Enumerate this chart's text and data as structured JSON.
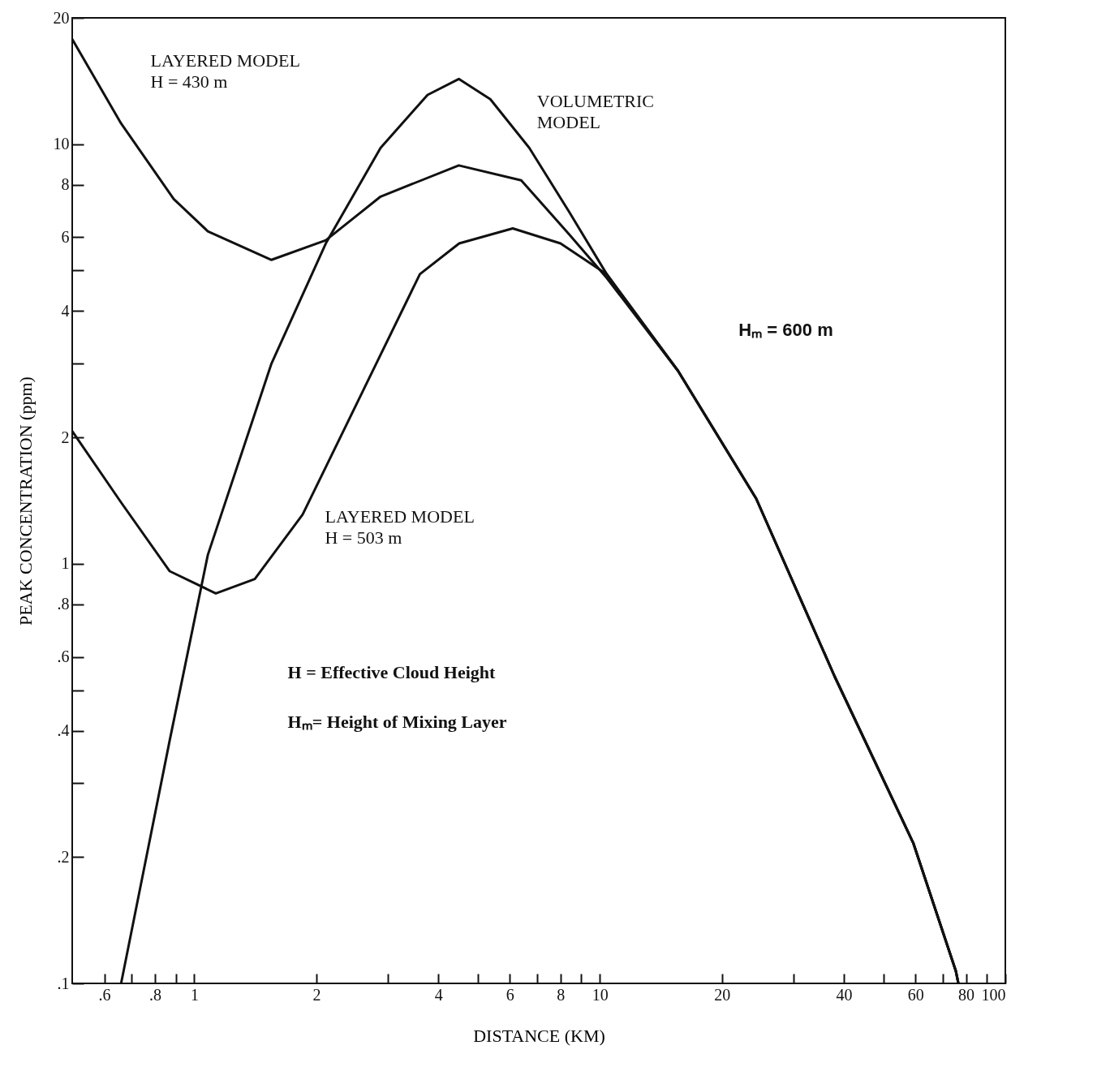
{
  "chart_data": {
    "type": "line",
    "xlabel": "DISTANCE (KM)",
    "ylabel": "PEAK CONCENTRATION (ppm)",
    "log": "xy",
    "grid": false,
    "marker": "none",
    "line_style": "solid",
    "xlim": [
      0.5,
      100
    ],
    "ylim": [
      0.1,
      20
    ],
    "xticks": [
      {
        "value": 0.6,
        "label": ".6"
      },
      {
        "value": 0.7,
        "label": null
      },
      {
        "value": 0.8,
        "label": ".8"
      },
      {
        "value": 0.9,
        "label": null
      },
      1,
      2,
      {
        "value": 3,
        "label": null
      },
      4,
      {
        "value": 5,
        "label": null
      },
      6,
      {
        "value": 7,
        "label": null
      },
      8,
      {
        "value": 9,
        "label": null
      },
      10,
      20,
      {
        "value": 30,
        "label": null
      },
      40,
      {
        "value": 50,
        "label": null
      },
      60,
      {
        "value": 70,
        "label": null
      },
      80,
      {
        "value": 90,
        "label": null
      },
      100
    ],
    "yticks": [
      {
        "value": 0.1,
        "label": ".1"
      },
      {
        "value": 0.2,
        "label": ".2"
      },
      {
        "value": 0.3,
        "label": null
      },
      {
        "value": 0.4,
        "label": ".4"
      },
      {
        "value": 0.5,
        "label": null
      },
      {
        "value": 0.6,
        "label": ".6"
      },
      {
        "value": 0.8,
        "label": ".8"
      },
      1,
      2,
      {
        "value": 3,
        "label": null
      },
      4,
      {
        "value": 5,
        "label": null
      },
      6,
      8,
      10,
      20
    ],
    "series": [
      {
        "name": "LAYERED MODEL\nH = 430 m",
        "color": "#111111",
        "x": [
          0.5,
          0.66,
          0.89,
          1.08,
          1.55,
          2.11,
          2.88,
          4.49,
          6.4,
          8.4,
          10.4,
          15.6,
          24.3,
          37.9,
          59.3,
          75.5,
          76.6
        ],
        "values": [
          17.8,
          11.2,
          7.4,
          6.2,
          5.3,
          5.9,
          7.5,
          8.9,
          8.2,
          6.1,
          4.8,
          2.88,
          1.43,
          0.54,
          0.216,
          0.107,
          0.1
        ]
      },
      {
        "name": "VOLUMETRIC\nMODEL",
        "color": "#111111",
        "x": [
          0.66,
          0.87,
          1.08,
          1.55,
          2.11,
          2.88,
          3.76,
          4.49,
          5.37,
          6.7,
          8.4,
          10.4,
          15.6,
          24.3,
          37.9,
          59.3,
          75.5,
          76.6
        ],
        "values": [
          0.1,
          0.38,
          1.05,
          3.0,
          5.8,
          9.8,
          13.1,
          14.3,
          12.8,
          9.8,
          6.9,
          4.9,
          2.88,
          1.43,
          0.54,
          0.216,
          0.107,
          0.1
        ]
      },
      {
        "name": "LAYERED MODEL\nH = 503 m",
        "color": "#111111",
        "x": [
          0.5,
          0.66,
          0.87,
          1.13,
          1.41,
          1.85,
          2.63,
          3.6,
          4.5,
          6.1,
          8.0,
          10.4,
          15.6,
          24.3,
          37.9,
          59.3,
          75.5,
          76.6
        ],
        "values": [
          2.07,
          1.4,
          0.96,
          0.85,
          0.92,
          1.31,
          2.63,
          4.9,
          5.8,
          6.3,
          5.8,
          4.9,
          2.88,
          1.43,
          0.54,
          0.216,
          0.107,
          0.1
        ]
      }
    ],
    "annotations": [
      "Hₘ = 600 m",
      "H  =  Effective Cloud Height",
      "Hₘ=  Height of Mixing Layer"
    ]
  }
}
